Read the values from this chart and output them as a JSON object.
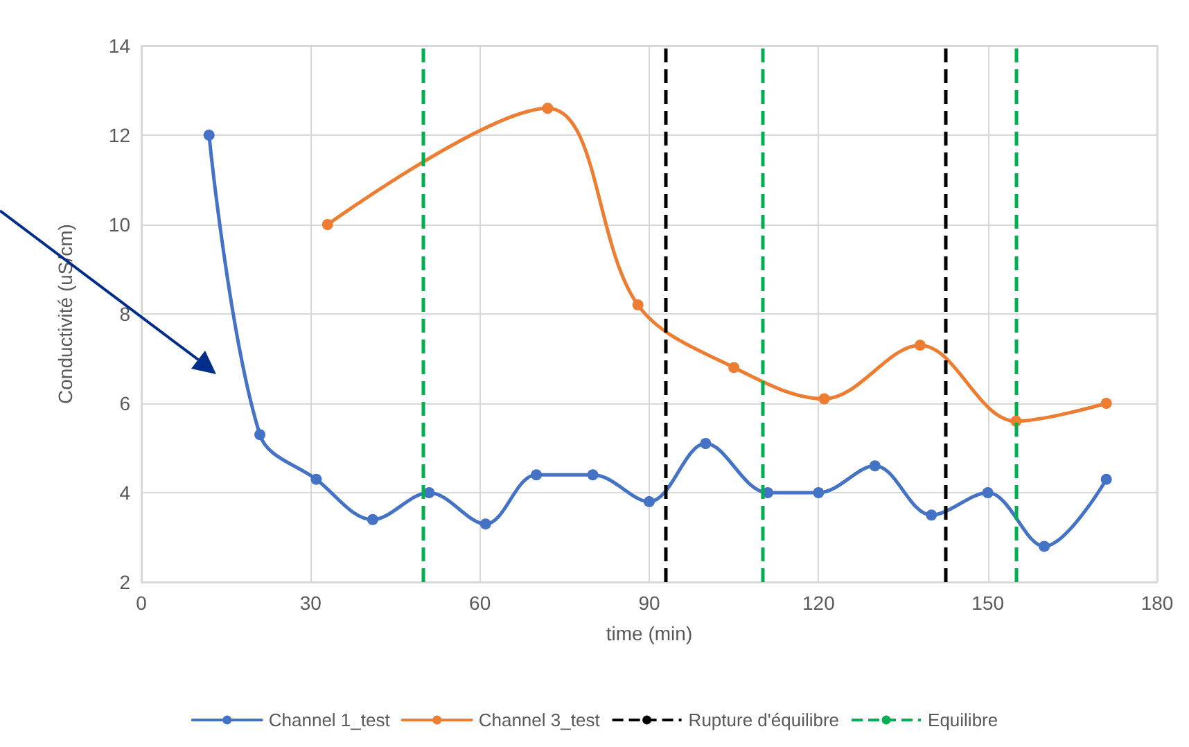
{
  "chart_data": {
    "type": "line",
    "xlabel": "time (min)",
    "ylabel": "Conductivité (uS/cm)",
    "xlim": [
      0,
      180
    ],
    "xticks": [
      0,
      30,
      60,
      90,
      120,
      150,
      180
    ],
    "ylim": [
      2,
      14
    ],
    "yticks": [
      2,
      4,
      6,
      8,
      10,
      12,
      14
    ],
    "grid": true,
    "legend": "bottom",
    "marker": "circle",
    "line_style": "solid",
    "series": [
      {
        "name": "Channel 1_test",
        "color": "#4472c4",
        "x": [
          12,
          21,
          31,
          41,
          51,
          61,
          70,
          80,
          90,
          100,
          111,
          120,
          130,
          140,
          150,
          160,
          171
        ],
        "values": [
          12,
          5.3,
          4.3,
          3.4,
          4,
          3.3,
          4.4,
          4.4,
          3.8,
          5.1,
          4,
          4,
          4.6,
          3.5,
          4,
          2.8,
          4.3
        ]
      },
      {
        "name": "Channel 3_test",
        "color": "#ed7d31",
        "x": [
          33,
          72,
          88,
          105,
          121,
          138,
          155,
          171
        ],
        "values": [
          10,
          12.6,
          8.2,
          6.8,
          6.1,
          7.3,
          5.6,
          6
        ]
      }
    ],
    "ref_lines": [
      {
        "axis": "x",
        "value": 93,
        "label": "Rupture d'équilibre",
        "color": "#000000",
        "line_style": "dashed"
      },
      {
        "axis": "x",
        "value": 50,
        "label": "Equilibre",
        "color": "#00b050",
        "line_style": "dashed"
      },
      {
        "axis": "x",
        "value": 110,
        "color": "#00b050",
        "line_style": "dashed"
      },
      {
        "axis": "x",
        "value": 142.5,
        "color": "#000000",
        "line_style": "dashed"
      },
      {
        "axis": "x",
        "value": 155,
        "color": "#00b050",
        "line_style": "dashed"
      }
    ]
  }
}
